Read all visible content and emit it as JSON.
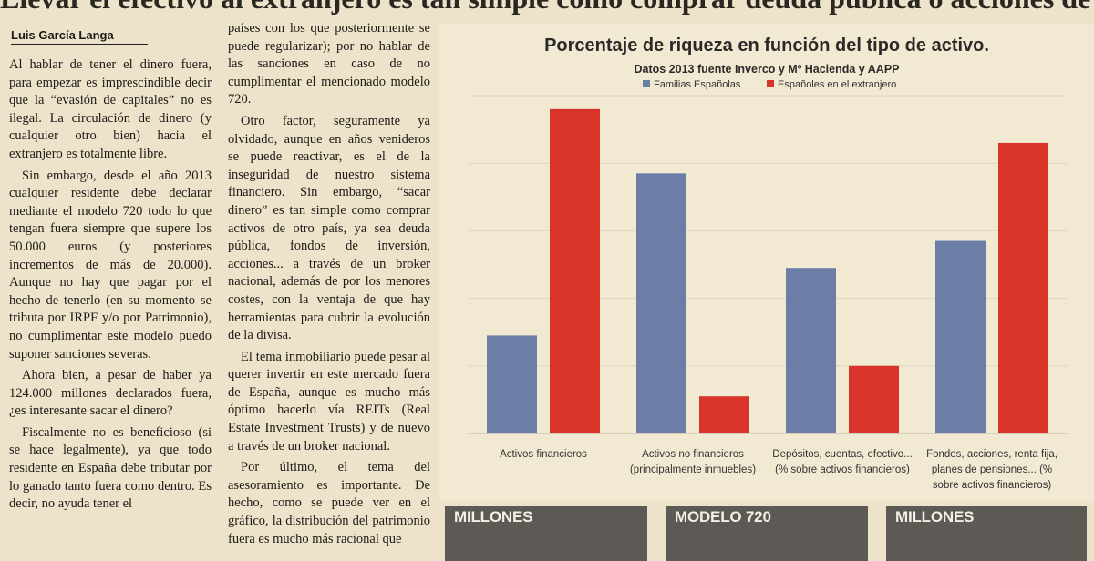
{
  "headline": "Llevar el efectivo al extranjero es tan simple como comprar deuda pública o acciones de otro país",
  "author": "Luis García Langa",
  "column1": [
    "Al hablar de tener el dinero fuera, para empezar es imprescindible decir que la “evasión de capitales” no es ilegal. La circulación de dinero (y cualquier otro bien) hacia el extranjero es totalmente libre.",
    "Sin embargo, desde el año 2013 cualquier residente debe declarar mediante el modelo 720 todo lo que tengan fuera siempre que supere los 50.000 euros (y posteriores incrementos de más de 20.000). Aunque no hay que pagar por el hecho de tenerlo (en su momento se tributa por IRPF y/o por Patrimonio), no cumplimentar este modelo puedo suponer sanciones severas.",
    "Ahora bien, a pesar de haber ya 124.000 millones declarados fuera, ¿es interesante sacar el dinero?",
    "Fiscalmente no es beneficioso (si se hace legalmente), ya que todo residente en España debe tributar por lo ganado tanto fuera como dentro. Es decir, no ayuda tener el"
  ],
  "column2": [
    "países con los que posteriormente se puede regularizar); por no hablar de las sanciones en caso de no cumplimentar el mencionado modelo 720.",
    "Otro factor, seguramente ya olvidado, aunque en años venideros se puede reactivar, es el de la inseguridad de nuestro sistema financiero. Sin embargo, “sacar dinero” es tan simple como comprar activos de otro país, ya sea deuda pública, fondos de inversión, acciones... a través de un broker nacional, además de por los menores costes, con la ventaja de que hay herramientas para cubrir la evolución de la divisa.",
    "El tema inmobiliario puede pesar al querer invertir en este mercado fuera de España, aunque es mucho más óptimo hacerlo vía REITs (Real Estate Investment Trusts) y de nuevo a través de un broker nacional.",
    "Por último, el tema del asesoramiento es importante. De hecho, como se puede ver en el gráfico, la distribución del patrimonio fuera es mucho más racional que"
  ],
  "chart_data": {
    "type": "bar",
    "title": "Porcentaje de riqueza en función del tipo de activo.",
    "subtitle": "Datos 2013 fuente Inverco y Mº Hacienda y AAPP",
    "categories": [
      [
        "Activos financieros"
      ],
      [
        "Activos no financieros",
        "(principalmente inmuebles)"
      ],
      [
        "Depósitos, cuentas, efectivo...",
        "(% sobre activos financieros)"
      ],
      [
        "Fondos, acciones, renta fija,",
        "planes de pensiones... (%",
        "sobre activos financieros)"
      ]
    ],
    "series": [
      {
        "name": "Familias Españolas",
        "color": "#6a7ea6",
        "values": [
          29,
          77,
          49,
          57
        ]
      },
      {
        "name": "Españoles en el extranjero",
        "color": "#d8342a",
        "values": [
          96,
          11,
          20,
          86
        ]
      }
    ],
    "ylim": [
      0,
      100
    ],
    "grid": true,
    "legend": "top"
  },
  "boxes": [
    {
      "label": "MILLONES"
    },
    {
      "label": "MODELO 720"
    },
    {
      "label": "MILLONES"
    }
  ]
}
